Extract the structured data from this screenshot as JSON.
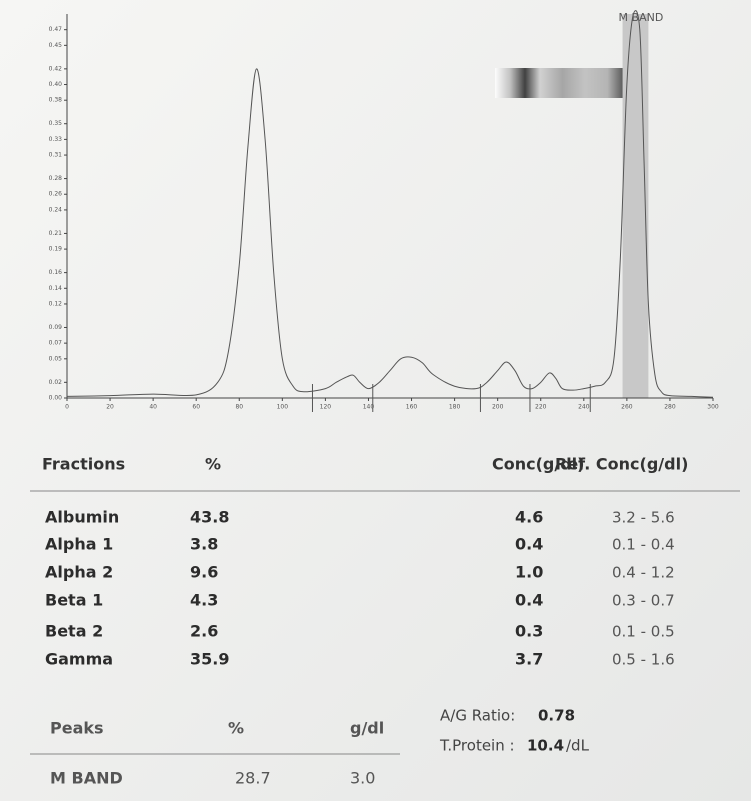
{
  "chart_data": {
    "type": "line",
    "annotation": "M BAND",
    "x": [
      0,
      20,
      40,
      60,
      70,
      75,
      80,
      84,
      88,
      92,
      96,
      100,
      105,
      110,
      120,
      125,
      130,
      133,
      136,
      140,
      145,
      150,
      155,
      160,
      165,
      170,
      180,
      190,
      195,
      200,
      204,
      208,
      212,
      216,
      220,
      224,
      227,
      230,
      235,
      240,
      245,
      250,
      254,
      257,
      260,
      263,
      266,
      268,
      270,
      273,
      276,
      280,
      290,
      300
    ],
    "series": [
      {
        "color": "#555555",
        "values": [
          0.002,
          0.003,
          0.005,
          0.004,
          0.02,
          0.06,
          0.17,
          0.32,
          0.42,
          0.33,
          0.16,
          0.05,
          0.015,
          0.008,
          0.012,
          0.02,
          0.027,
          0.029,
          0.02,
          0.012,
          0.02,
          0.035,
          0.05,
          0.052,
          0.045,
          0.03,
          0.015,
          0.012,
          0.02,
          0.035,
          0.046,
          0.035,
          0.015,
          0.012,
          0.02,
          0.032,
          0.025,
          0.012,
          0.01,
          0.012,
          0.015,
          0.02,
          0.05,
          0.18,
          0.4,
          0.49,
          0.47,
          0.3,
          0.12,
          0.03,
          0.008,
          0.003,
          0.002,
          0.001
        ]
      }
    ],
    "shaded_range": [
      258,
      270
    ],
    "shade_color": "#c8c8c8",
    "dividers": [
      114,
      142,
      192,
      215,
      243
    ],
    "xlim": [
      0,
      300
    ],
    "xticks": [
      0,
      20,
      40,
      60,
      80,
      100,
      120,
      140,
      160,
      180,
      200,
      220,
      240,
      260,
      280,
      300
    ],
    "ylim": [
      0,
      0.49
    ],
    "yticks": [
      {
        "value": 0,
        "label": "0.00"
      },
      0.02,
      0.05,
      0.07,
      0.09,
      0.12,
      0.14,
      0.16,
      0.19,
      0.21,
      0.24,
      0.26,
      0.28,
      0.31,
      0.33,
      0.35,
      0.38,
      {
        "value": 0.4,
        "label": "0.40"
      },
      0.42,
      0.45,
      0.47
    ],
    "grid": false
  },
  "fractions_table": {
    "header": [
      "Fractions",
      "%",
      "Conc(g/dl)",
      "Ref. Conc(g/dl)"
    ],
    "rows": [
      [
        "Albumin",
        "43.8",
        "4.6",
        "3.2 -  5.6"
      ],
      [
        "Alpha 1",
        "3.8",
        "0.4",
        "0.1 -  0.4"
      ],
      [
        "Alpha 2",
        "9.6",
        "1.0",
        "0.4 -  1.2"
      ],
      [
        "Beta 1",
        "4.3",
        "0.4",
        "0.3 -  0.7"
      ],
      [
        "Beta 2",
        "2.6",
        "0.3",
        "0.1 -  0.5"
      ],
      [
        "Gamma",
        "35.9",
        "3.7",
        "0.5 -  1.6"
      ]
    ]
  },
  "peaks_table": {
    "header": [
      "Peaks",
      "%",
      "g/dl"
    ],
    "rows": [
      [
        "M BAND",
        "28.7",
        "3.0"
      ]
    ]
  },
  "summary": {
    "ag_label": "A/G Ratio:",
    "ag_value": "0.78",
    "tp_label": "T.Protein :",
    "tp_value": "10.4",
    "tp_unit": "/dL"
  }
}
